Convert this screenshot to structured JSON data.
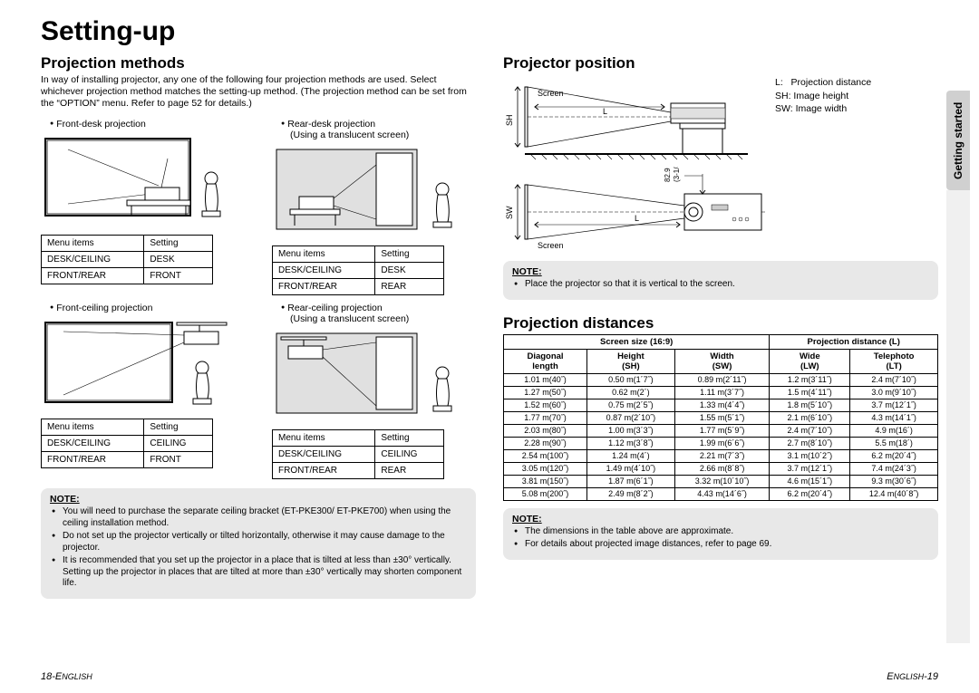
{
  "title": "Setting-up",
  "side_tab": "Getting started",
  "left": {
    "heading": "Projection methods",
    "intro": "In way of installing projector, any one of the following four projection methods are used. Select whichever projection method matches the setting-up method. (The projection method can be set from the “OPTION” menu. Refer to page 52 for details.)",
    "methods": [
      {
        "label": "Front-desk projection",
        "sub": "",
        "table": [
          [
            "Menu items",
            "Setting"
          ],
          [
            "DESK/CEILING",
            "DESK"
          ],
          [
            "FRONT/REAR",
            "FRONT"
          ]
        ]
      },
      {
        "label": "Rear-desk projection",
        "sub": "(Using a translucent screen)",
        "table": [
          [
            "Menu items",
            "Setting"
          ],
          [
            "DESK/CEILING",
            "DESK"
          ],
          [
            "FRONT/REAR",
            "REAR"
          ]
        ]
      },
      {
        "label": "Front-ceiling projection",
        "sub": "",
        "table": [
          [
            "Menu items",
            "Setting"
          ],
          [
            "DESK/CEILING",
            "CEILING"
          ],
          [
            "FRONT/REAR",
            "FRONT"
          ]
        ]
      },
      {
        "label": "Rear-ceiling projection",
        "sub": "(Using a translucent screen)",
        "table": [
          [
            "Menu items",
            "Setting"
          ],
          [
            "DESK/CEILING",
            "CEILING"
          ],
          [
            "FRONT/REAR",
            "REAR"
          ]
        ]
      }
    ],
    "note_title": "NOTE:",
    "notes": [
      "You will need to purchase the separate ceiling bracket (ET-PKE300/ ET-PKE700) when using the ceiling installation method.",
      "Do not set up the projector vertically or tilted horizontally, otherwise it may cause damage to the projector.",
      "It is recommended that you set up the projector in a place that is tilted at less than ±30° vertically. Setting up the projector in places that are tilted at more than ±30° vertically may shorten component life."
    ]
  },
  "right": {
    "heading1": "Projector position",
    "legend": {
      "L": "Projection distance",
      "SH": "Image height",
      "SW": "Image width"
    },
    "dim_label": "82.9 mm\n(3-1/4˝)",
    "screen_label": "Screen",
    "note1_title": "NOTE:",
    "notes1": [
      "Place the projector so that it is vertical to the screen."
    ],
    "heading2": "Projection distances",
    "dist_headers_group": [
      "Screen size (16:9)",
      "Projection distance (L)"
    ],
    "dist_headers": [
      "Diagonal length",
      "Height (SH)",
      "Width (SW)",
      "Wide (LW)",
      "Telephoto (LT)"
    ],
    "dist_rows": [
      [
        "1.01 m(40˝)",
        "0.50 m(1´7˝)",
        "0.89 m(2´11˝)",
        "1.2 m(3´11˝)",
        "2.4 m(7´10˝)"
      ],
      [
        "1.27 m(50˝)",
        "0.62 m(2´)",
        "1.11 m(3´7˝)",
        "1.5 m(4´11˝)",
        "3.0 m(9´10˝)"
      ],
      [
        "1.52 m(60˝)",
        "0.75 m(2´5˝)",
        "1.33 m(4´4˝)",
        "1.8 m(5´10˝)",
        "3.7 m(12´1˝)"
      ],
      [
        "1.77 m(70˝)",
        "0.87 m(2´10˝)",
        "1.55 m(5´1˝)",
        "2.1 m(6´10˝)",
        "4.3 m(14´1˝)"
      ],
      [
        "2.03 m(80˝)",
        "1.00 m(3´3˝)",
        "1.77 m(5´9˝)",
        "2.4 m(7´10˝)",
        "4.9 m(16´)"
      ],
      [
        "2.28 m(90˝)",
        "1.12 m(3´8˝)",
        "1.99 m(6´6˝)",
        "2.7 m(8´10˝)",
        "5.5 m(18´)"
      ],
      [
        "2.54 m(100˝)",
        "1.24 m(4´)",
        "2.21 m(7´3˝)",
        "3.1 m(10´2˝)",
        "6.2 m(20´4˝)"
      ],
      [
        "3.05 m(120˝)",
        "1.49 m(4´10˝)",
        "2.66 m(8´8˝)",
        "3.7 m(12´1˝)",
        "7.4 m(24´3˝)"
      ],
      [
        "3.81 m(150˝)",
        "1.87 m(6´1˝)",
        "3.32 m(10´10˝)",
        "4.6 m(15´1˝)",
        "9.3 m(30´6˝)"
      ],
      [
        "5.08 m(200˝)",
        "2.49 m(8´2˝)",
        "4.43 m(14´6˝)",
        "6.2 m(20´4˝)",
        "12.4 m(40´8˝)"
      ]
    ],
    "note2_title": "NOTE:",
    "notes2": [
      "The dimensions in the table above are approximate.",
      "For details about projected image distances, refer to page 69."
    ]
  },
  "footer_left": "18-ENGLISH",
  "footer_right": "ENGLISH-19"
}
